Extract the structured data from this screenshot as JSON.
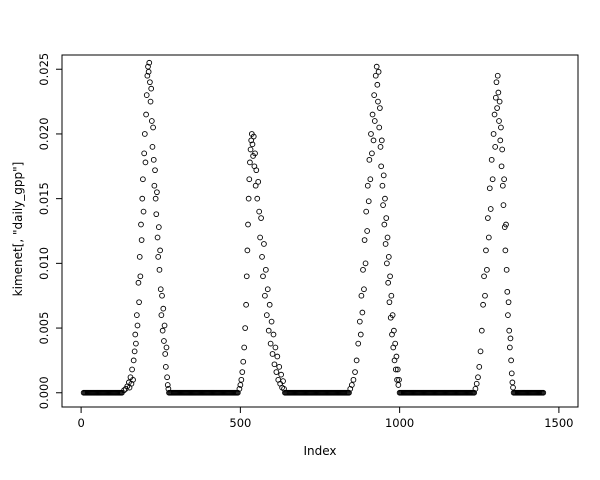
{
  "figure": {
    "background": "#ffffff",
    "marker_color": "#000000"
  },
  "chart_data": {
    "type": "scatter",
    "title": "",
    "xlabel": "Index",
    "ylabel": "kimenet[, \"daily_gpp\"]",
    "xlim": [
      0,
      1500
    ],
    "ylim": [
      0,
      0.025
    ],
    "x_domain": [
      -60,
      1560
    ],
    "y_domain": [
      -0.0011,
      0.0261
    ],
    "x_ticks": [
      0,
      500,
      1000,
      1500
    ],
    "x_tick_labels": [
      "0",
      "500",
      "1000",
      "1500"
    ],
    "y_ticks": [
      0,
      0.005,
      0.01,
      0.015,
      0.02,
      0.025
    ],
    "y_tick_labels": [
      "0.000",
      "0.005",
      "0.010",
      "0.015",
      "0.020",
      "0.025"
    ],
    "grid": false,
    "legend": null,
    "marker": {
      "shape": "open-circle",
      "color": "#000000",
      "radius": 2.4,
      "stroke_width": 0.9
    },
    "zero_segments": [
      {
        "from": 8,
        "to": 130,
        "step": 3,
        "y": 0
      },
      {
        "from": 276,
        "to": 494,
        "step": 3,
        "y": 0
      },
      {
        "from": 640,
        "to": 842,
        "step": 3,
        "y": 0
      },
      {
        "from": 1000,
        "to": 1234,
        "step": 3,
        "y": 0
      },
      {
        "from": 1358,
        "to": 1452,
        "step": 3,
        "y": 0
      }
    ],
    "series": [
      {
        "name": "daily_gpp",
        "points": [
          [
            135,
            0.0002
          ],
          [
            140,
            0.0003
          ],
          [
            145,
            0.0005
          ],
          [
            150,
            0.0008
          ],
          [
            152,
            0.0004
          ],
          [
            155,
            0.0012
          ],
          [
            158,
            0.0007
          ],
          [
            160,
            0.0018
          ],
          [
            163,
            0.001
          ],
          [
            165,
            0.0025
          ],
          [
            168,
            0.0032
          ],
          [
            170,
            0.0045
          ],
          [
            172,
            0.0038
          ],
          [
            175,
            0.006
          ],
          [
            177,
            0.0052
          ],
          [
            180,
            0.0085
          ],
          [
            182,
            0.007
          ],
          [
            184,
            0.0105
          ],
          [
            186,
            0.009
          ],
          [
            188,
            0.013
          ],
          [
            190,
            0.0118
          ],
          [
            192,
            0.015
          ],
          [
            194,
            0.0165
          ],
          [
            196,
            0.014
          ],
          [
            198,
            0.0185
          ],
          [
            200,
            0.02
          ],
          [
            202,
            0.0178
          ],
          [
            204,
            0.0215
          ],
          [
            206,
            0.023
          ],
          [
            208,
            0.0245
          ],
          [
            210,
            0.0252
          ],
          [
            212,
            0.0248
          ],
          [
            214,
            0.0255
          ],
          [
            216,
            0.024
          ],
          [
            218,
            0.0225
          ],
          [
            220,
            0.0235
          ],
          [
            222,
            0.021
          ],
          [
            224,
            0.019
          ],
          [
            226,
            0.0205
          ],
          [
            228,
            0.018
          ],
          [
            230,
            0.016
          ],
          [
            232,
            0.0172
          ],
          [
            234,
            0.015
          ],
          [
            236,
            0.0138
          ],
          [
            238,
            0.0155
          ],
          [
            240,
            0.012
          ],
          [
            242,
            0.0105
          ],
          [
            244,
            0.0128
          ],
          [
            246,
            0.0095
          ],
          [
            248,
            0.011
          ],
          [
            250,
            0.008
          ],
          [
            252,
            0.006
          ],
          [
            254,
            0.0075
          ],
          [
            256,
            0.0048
          ],
          [
            258,
            0.0065
          ],
          [
            260,
            0.004
          ],
          [
            262,
            0.0052
          ],
          [
            264,
            0.003
          ],
          [
            266,
            0.002
          ],
          [
            268,
            0.0035
          ],
          [
            270,
            0.0012
          ],
          [
            272,
            0.0006
          ],
          [
            274,
            0.0003
          ],
          [
            497,
            0.0003
          ],
          [
            500,
            0.0006
          ],
          [
            503,
            0.001
          ],
          [
            506,
            0.0016
          ],
          [
            509,
            0.0024
          ],
          [
            512,
            0.0035
          ],
          [
            515,
            0.005
          ],
          [
            518,
            0.0068
          ],
          [
            520,
            0.009
          ],
          [
            522,
            0.011
          ],
          [
            524,
            0.013
          ],
          [
            526,
            0.015
          ],
          [
            528,
            0.0165
          ],
          [
            530,
            0.0178
          ],
          [
            532,
            0.0188
          ],
          [
            534,
            0.0195
          ],
          [
            536,
            0.02
          ],
          [
            538,
            0.0192
          ],
          [
            540,
            0.0183
          ],
          [
            542,
            0.0198
          ],
          [
            544,
            0.0175
          ],
          [
            546,
            0.0185
          ],
          [
            548,
            0.016
          ],
          [
            550,
            0.0172
          ],
          [
            553,
            0.015
          ],
          [
            556,
            0.0163
          ],
          [
            559,
            0.014
          ],
          [
            562,
            0.012
          ],
          [
            565,
            0.0135
          ],
          [
            568,
            0.0105
          ],
          [
            571,
            0.009
          ],
          [
            574,
            0.0115
          ],
          [
            577,
            0.0075
          ],
          [
            580,
            0.0095
          ],
          [
            583,
            0.006
          ],
          [
            586,
            0.008
          ],
          [
            589,
            0.0048
          ],
          [
            592,
            0.0068
          ],
          [
            595,
            0.0038
          ],
          [
            598,
            0.0055
          ],
          [
            601,
            0.003
          ],
          [
            604,
            0.0045
          ],
          [
            607,
            0.0022
          ],
          [
            610,
            0.0035
          ],
          [
            613,
            0.0016
          ],
          [
            616,
            0.0028
          ],
          [
            619,
            0.001
          ],
          [
            622,
            0.002
          ],
          [
            625,
            0.0007
          ],
          [
            628,
            0.0014
          ],
          [
            631,
            0.0004
          ],
          [
            634,
            0.0009
          ],
          [
            637,
            0.0003
          ],
          [
            845,
            0.0003
          ],
          [
            850,
            0.0006
          ],
          [
            855,
            0.001
          ],
          [
            860,
            0.0016
          ],
          [
            865,
            0.0025
          ],
          [
            870,
            0.0038
          ],
          [
            875,
            0.0055
          ],
          [
            878,
            0.0045
          ],
          [
            880,
            0.0075
          ],
          [
            883,
            0.0062
          ],
          [
            885,
            0.0095
          ],
          [
            888,
            0.008
          ],
          [
            890,
            0.0118
          ],
          [
            893,
            0.01
          ],
          [
            895,
            0.014
          ],
          [
            898,
            0.0125
          ],
          [
            900,
            0.016
          ],
          [
            903,
            0.0148
          ],
          [
            905,
            0.018
          ],
          [
            908,
            0.0165
          ],
          [
            910,
            0.02
          ],
          [
            913,
            0.0185
          ],
          [
            915,
            0.0215
          ],
          [
            918,
            0.0195
          ],
          [
            920,
            0.023
          ],
          [
            922,
            0.021
          ],
          [
            925,
            0.0245
          ],
          [
            928,
            0.0252
          ],
          [
            930,
            0.0238
          ],
          [
            932,
            0.0225
          ],
          [
            934,
            0.0248
          ],
          [
            936,
            0.0205
          ],
          [
            938,
            0.022
          ],
          [
            940,
            0.019
          ],
          [
            942,
            0.0175
          ],
          [
            944,
            0.0195
          ],
          [
            946,
            0.016
          ],
          [
            948,
            0.0145
          ],
          [
            950,
            0.0168
          ],
          [
            952,
            0.013
          ],
          [
            954,
            0.015
          ],
          [
            956,
            0.0115
          ],
          [
            958,
            0.0135
          ],
          [
            960,
            0.01
          ],
          [
            962,
            0.012
          ],
          [
            964,
            0.0085
          ],
          [
            966,
            0.0105
          ],
          [
            968,
            0.007
          ],
          [
            970,
            0.009
          ],
          [
            972,
            0.0058
          ],
          [
            974,
            0.0075
          ],
          [
            976,
            0.0045
          ],
          [
            978,
            0.006
          ],
          [
            980,
            0.0035
          ],
          [
            982,
            0.0048
          ],
          [
            984,
            0.0025
          ],
          [
            986,
            0.0038
          ],
          [
            988,
            0.0018
          ],
          [
            990,
            0.0028
          ],
          [
            992,
            0.001
          ],
          [
            994,
            0.0018
          ],
          [
            996,
            0.0006
          ],
          [
            998,
            0.001
          ],
          [
            1238,
            0.0003
          ],
          [
            1242,
            0.0007
          ],
          [
            1246,
            0.0012
          ],
          [
            1250,
            0.002
          ],
          [
            1254,
            0.0032
          ],
          [
            1258,
            0.0048
          ],
          [
            1262,
            0.0068
          ],
          [
            1265,
            0.009
          ],
          [
            1268,
            0.0075
          ],
          [
            1271,
            0.011
          ],
          [
            1274,
            0.0095
          ],
          [
            1277,
            0.0135
          ],
          [
            1280,
            0.012
          ],
          [
            1283,
            0.0158
          ],
          [
            1286,
            0.0142
          ],
          [
            1289,
            0.018
          ],
          [
            1292,
            0.0165
          ],
          [
            1295,
            0.02
          ],
          [
            1298,
            0.0215
          ],
          [
            1300,
            0.019
          ],
          [
            1302,
            0.0228
          ],
          [
            1304,
            0.024
          ],
          [
            1306,
            0.022
          ],
          [
            1308,
            0.0245
          ],
          [
            1310,
            0.0232
          ],
          [
            1312,
            0.021
          ],
          [
            1314,
            0.0225
          ],
          [
            1316,
            0.0195
          ],
          [
            1318,
            0.0205
          ],
          [
            1320,
            0.0175
          ],
          [
            1322,
            0.0188
          ],
          [
            1324,
            0.016
          ],
          [
            1326,
            0.0145
          ],
          [
            1328,
            0.0165
          ],
          [
            1330,
            0.0128
          ],
          [
            1332,
            0.011
          ],
          [
            1334,
            0.013
          ],
          [
            1336,
            0.0095
          ],
          [
            1338,
            0.0078
          ],
          [
            1340,
            0.006
          ],
          [
            1342,
            0.007
          ],
          [
            1344,
            0.0048
          ],
          [
            1346,
            0.0035
          ],
          [
            1348,
            0.0042
          ],
          [
            1350,
            0.0025
          ],
          [
            1352,
            0.0015
          ],
          [
            1354,
            0.0008
          ],
          [
            1356,
            0.0004
          ]
        ]
      }
    ]
  }
}
